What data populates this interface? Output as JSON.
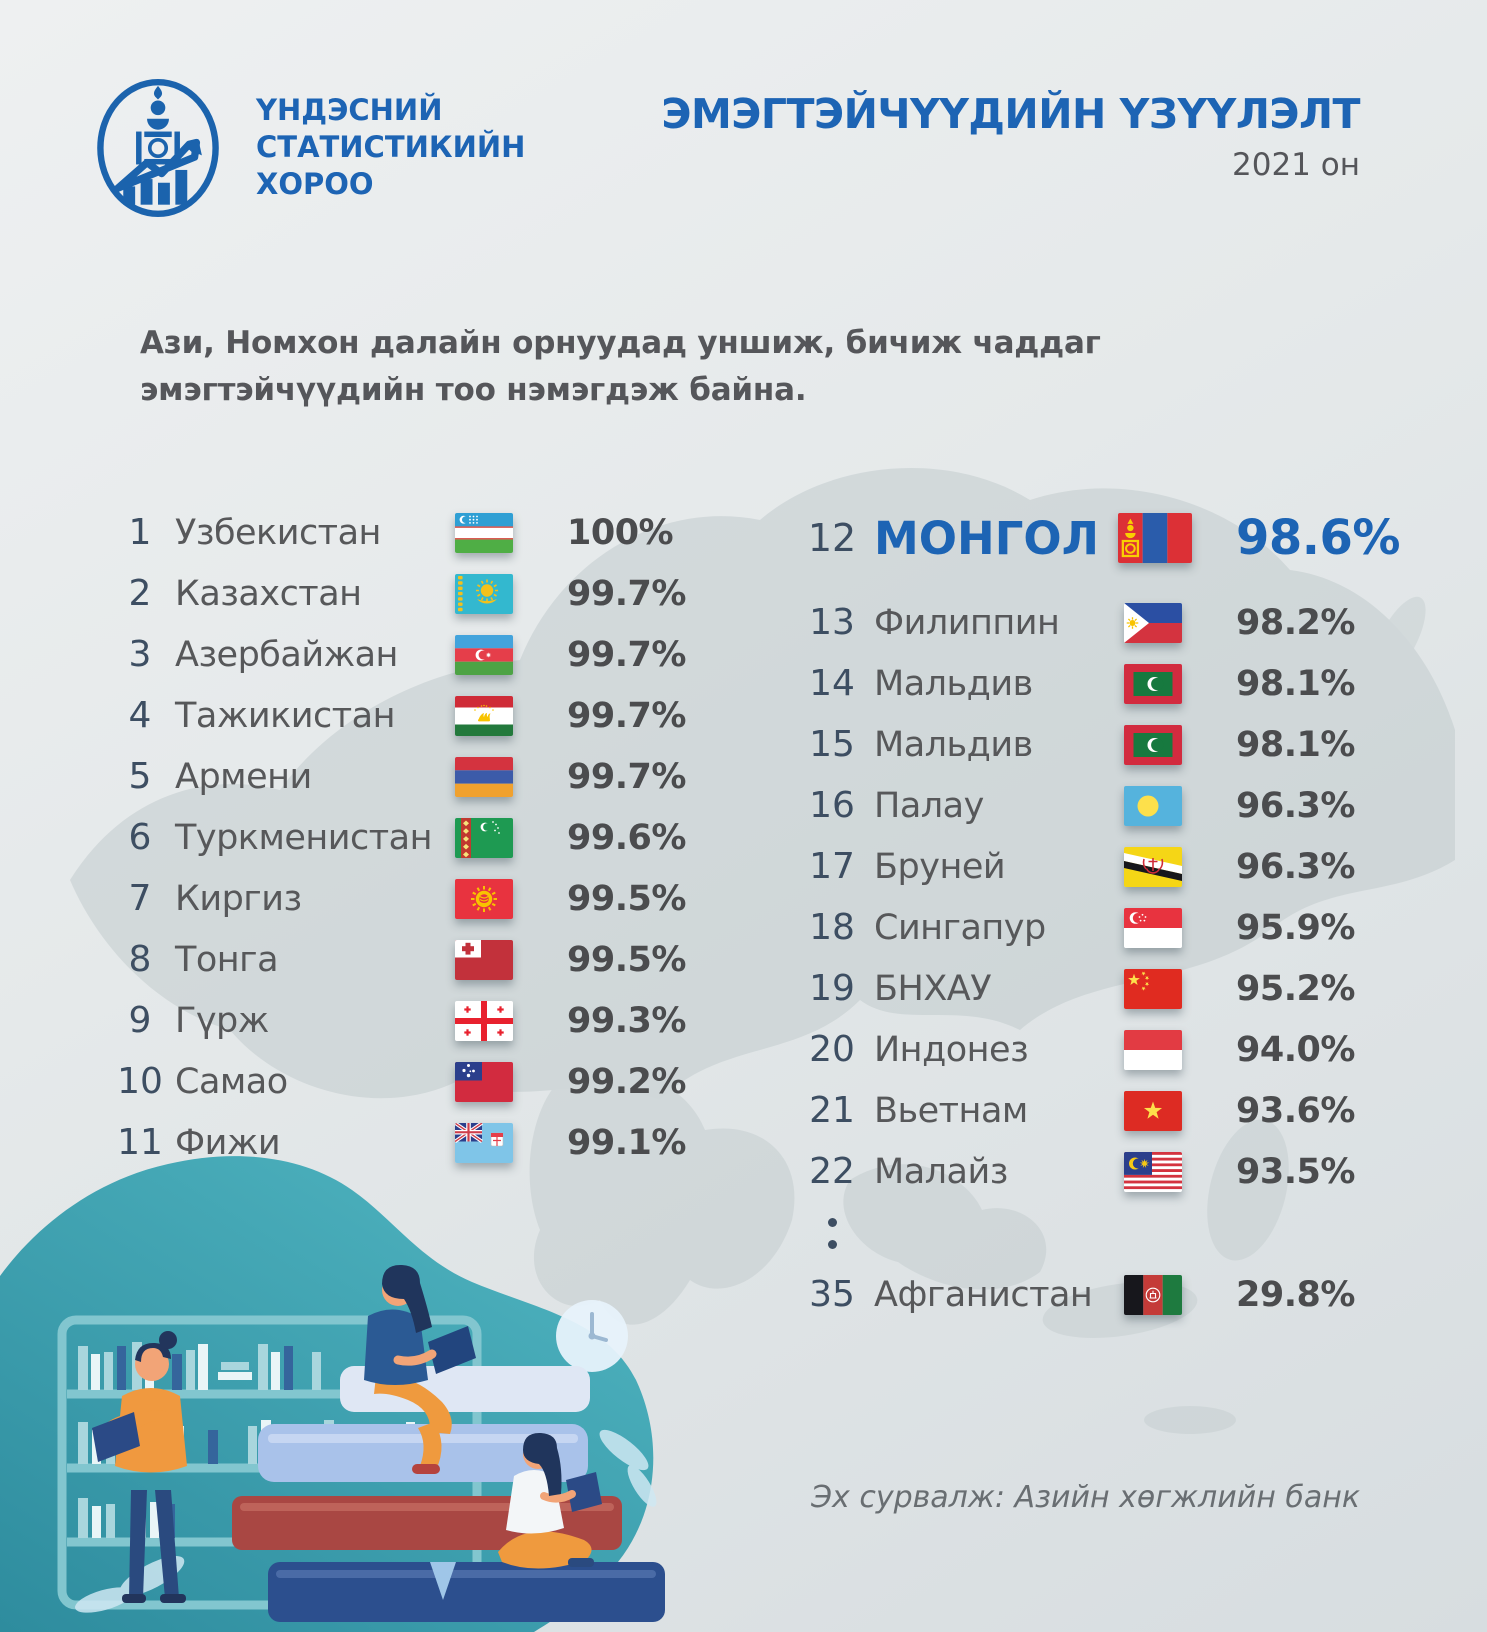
{
  "header": {
    "logo_lines": [
      "ҮНДЭСНИЙ",
      "СТАТИСТИКИЙН",
      "ХОРОО"
    ],
    "title": "ЭМЭГТЭЙЧҮҮДИЙН ҮЗҮҮЛЭЛТ",
    "year": "2021 он"
  },
  "subtitle": "Ази, Номхон далайн орнуудад уншиж, бичиж чаддаг эмэгтэйчүүдийн тоо нэмэгдэж байна.",
  "source": "Эх сурвалж: Азийн хөгжлийн банк",
  "colors": {
    "brand_blue": "#1d64b4",
    "text_gray": "#57585a",
    "rank_navy": "#3d4e62",
    "pct_gray": "#4b4c4e",
    "teal": "#3a9fae"
  },
  "ranking_left": [
    {
      "rank": "1",
      "name": "Узбекистан",
      "value": "100%",
      "flag": "uzbekistan"
    },
    {
      "rank": "2",
      "name": "Казахстан",
      "value": "99.7%",
      "flag": "kazakhstan"
    },
    {
      "rank": "3",
      "name": "Азербайжан",
      "value": "99.7%",
      "flag": "azerbaijan"
    },
    {
      "rank": "4",
      "name": "Тажикистан",
      "value": "99.7%",
      "flag": "tajikistan"
    },
    {
      "rank": "5",
      "name": "Армени",
      "value": "99.7%",
      "flag": "armenia"
    },
    {
      "rank": "6",
      "name": "Туркменистан",
      "value": "99.6%",
      "flag": "turkmenistan"
    },
    {
      "rank": "7",
      "name": "Киргиз",
      "value": "99.5%",
      "flag": "kyrgyzstan"
    },
    {
      "rank": "8",
      "name": "Тонга",
      "value": "99.5%",
      "flag": "tonga"
    },
    {
      "rank": "9",
      "name": "Гүрж",
      "value": "99.3%",
      "flag": "georgia"
    },
    {
      "rank": "10",
      "name": "Самао",
      "value": "99.2%",
      "flag": "samoa"
    },
    {
      "rank": "11",
      "name": "Фижи",
      "value": "99.1%",
      "flag": "fiji"
    }
  ],
  "ranking_right": [
    {
      "rank": "12",
      "name": "МОНГОЛ",
      "value": "98.6%",
      "flag": "mongolia",
      "highlight": true
    },
    {
      "rank": "13",
      "name": "Филиппин",
      "value": "98.2%",
      "flag": "philippines"
    },
    {
      "rank": "14",
      "name": "Мальдив",
      "value": "98.1%",
      "flag": "maldives"
    },
    {
      "rank": "15",
      "name": "Мальдив",
      "value": "98.1%",
      "flag": "maldives"
    },
    {
      "rank": "16",
      "name": "Палау",
      "value": "96.3%",
      "flag": "palau"
    },
    {
      "rank": "17",
      "name": "Бруней",
      "value": "96.3%",
      "flag": "brunei"
    },
    {
      "rank": "18",
      "name": "Сингапур",
      "value": "95.9%",
      "flag": "singapore"
    },
    {
      "rank": "19",
      "name": "БНХАУ",
      "value": "95.2%",
      "flag": "china"
    },
    {
      "rank": "20",
      "name": "Индонез",
      "value": "94.0%",
      "flag": "indonesia"
    },
    {
      "rank": "21",
      "name": "Вьетнам",
      "value": "93.6%",
      "flag": "vietnam"
    },
    {
      "rank": "22",
      "name": "Малайз",
      "value": "93.5%",
      "flag": "malaysia"
    },
    {
      "type": "dots"
    },
    {
      "rank": "35",
      "name": "Афганистан",
      "value": "29.8%",
      "flag": "afghanistan"
    }
  ],
  "chart_data": {
    "type": "table",
    "title": "ЭМЭГТЭЙЧҮҮДИЙН ҮЗҮҮЛЭЛТ — 2021 он",
    "subtitle": "Ази, Номхон далайн орнуудад уншиж, бичиж чаддаг эмэгтэйчүүдийн тоо нэмэгдэж байна.",
    "columns": [
      "rank",
      "country",
      "literacy_rate_percent"
    ],
    "rows": [
      {
        "rank": 1,
        "country": "Узбекистан",
        "rate": 100
      },
      {
        "rank": 2,
        "country": "Казахстан",
        "rate": 99.7
      },
      {
        "rank": 3,
        "country": "Азербайжан",
        "rate": 99.7
      },
      {
        "rank": 4,
        "country": "Тажикистан",
        "rate": 99.7
      },
      {
        "rank": 5,
        "country": "Армени",
        "rate": 99.7
      },
      {
        "rank": 6,
        "country": "Туркменистан",
        "rate": 99.6
      },
      {
        "rank": 7,
        "country": "Киргиз",
        "rate": 99.5
      },
      {
        "rank": 8,
        "country": "Тонга",
        "rate": 99.5
      },
      {
        "rank": 9,
        "country": "Гүрж",
        "rate": 99.3
      },
      {
        "rank": 10,
        "country": "Самао",
        "rate": 99.2
      },
      {
        "rank": 11,
        "country": "Фижи",
        "rate": 99.1
      },
      {
        "rank": 12,
        "country": "МОНГОЛ",
        "rate": 98.6
      },
      {
        "rank": 13,
        "country": "Филиппин",
        "rate": 98.2
      },
      {
        "rank": 14,
        "country": "Мальдив",
        "rate": 98.1
      },
      {
        "rank": 15,
        "country": "Мальдив",
        "rate": 98.1
      },
      {
        "rank": 16,
        "country": "Палау",
        "rate": 96.3
      },
      {
        "rank": 17,
        "country": "Бруней",
        "rate": 96.3
      },
      {
        "rank": 18,
        "country": "Сингапур",
        "rate": 95.9
      },
      {
        "rank": 19,
        "country": "БНХАУ",
        "rate": 95.2
      },
      {
        "rank": 20,
        "country": "Индонез",
        "rate": 94.0
      },
      {
        "rank": 21,
        "country": "Вьетнам",
        "rate": 93.6
      },
      {
        "rank": 22,
        "country": "Малайз",
        "rate": 93.5
      },
      {
        "rank": 35,
        "country": "Афганистан",
        "rate": 29.8
      }
    ],
    "highlighted_row": {
      "rank": 12,
      "country": "МОНГОЛ",
      "rate": 98.6
    },
    "source": "Эх сурвалж: Азийн хөгжлийн банк"
  }
}
